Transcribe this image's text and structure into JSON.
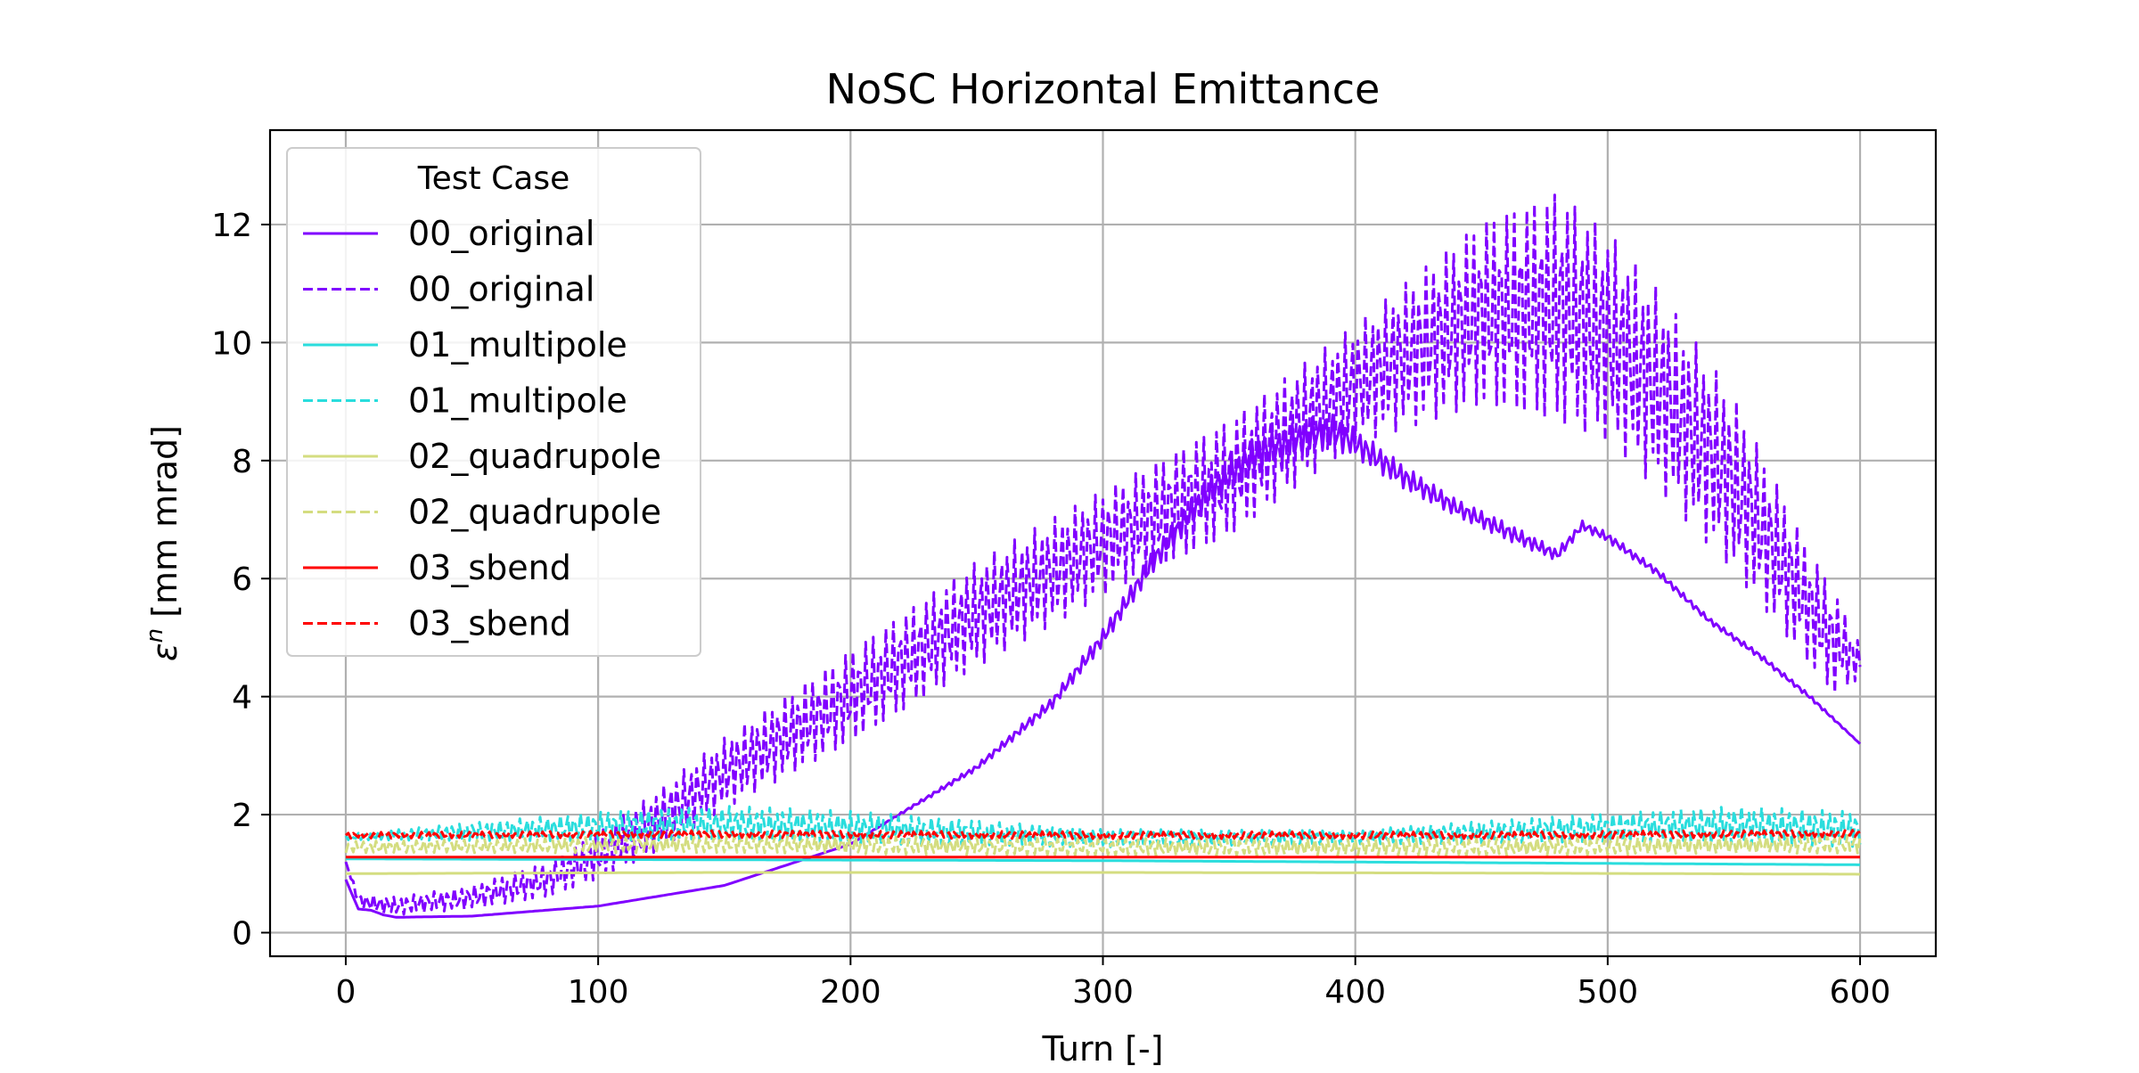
{
  "chart_data": {
    "type": "line",
    "title": "NoSC Horizontal Emittance",
    "xlabel": "Turn [-]",
    "ylabel_symbol": "ε",
    "ylabel_superscript": "n",
    "ylabel_unit": " [mm mrad]",
    "xlim": [
      -30,
      630
    ],
    "ylim": [
      -0.4,
      13.6
    ],
    "xticks": [
      0,
      100,
      200,
      300,
      400,
      500,
      600
    ],
    "yticks": [
      0,
      2,
      4,
      6,
      8,
      10,
      12
    ],
    "grid": true,
    "legend": {
      "title": "Test Case",
      "position": "top-left"
    },
    "series": [
      {
        "name": "00_original",
        "style": "solid",
        "color": "#8000ff",
        "x": [
          0,
          5,
          10,
          15,
          20,
          50,
          100,
          150,
          200,
          250,
          280,
          300,
          320,
          340,
          360,
          380,
          390,
          400,
          420,
          440,
          460,
          480,
          490,
          500,
          520,
          540,
          560,
          580,
          600
        ],
        "y": [
          0.9,
          0.4,
          0.38,
          0.3,
          0.26,
          0.28,
          0.45,
          0.8,
          1.5,
          2.8,
          3.9,
          5.0,
          6.3,
          7.4,
          8.1,
          8.4,
          8.5,
          8.3,
          7.7,
          7.2,
          6.8,
          6.4,
          6.9,
          6.7,
          6.1,
          5.3,
          4.7,
          4.0,
          3.2
        ],
        "amplitude": [
          0,
          0,
          0,
          0,
          0,
          0,
          0,
          0,
          0,
          0.05,
          0.1,
          0.15,
          0.2,
          0.25,
          0.3,
          0.3,
          0.3,
          0.25,
          0.2,
          0.15,
          0.15,
          0.1,
          0.08,
          0.08,
          0.06,
          0.05,
          0.05,
          0.04,
          0
        ]
      },
      {
        "name": "00_original",
        "style": "dashed",
        "color": "#8000ff",
        "x": [
          0,
          5,
          10,
          20,
          50,
          80,
          100,
          120,
          150,
          200,
          250,
          300,
          350,
          400,
          450,
          480,
          500,
          520,
          550,
          580,
          590,
          600
        ],
        "y": [
          1.2,
          0.55,
          0.5,
          0.45,
          0.6,
          0.9,
          1.3,
          1.8,
          2.7,
          4.0,
          5.4,
          6.6,
          7.7,
          9.3,
          10.5,
          10.6,
          10.1,
          9.2,
          7.6,
          5.5,
          4.9,
          4.6
        ],
        "amplitude": [
          0,
          0.1,
          0.15,
          0.15,
          0.2,
          0.3,
          0.4,
          0.5,
          0.6,
          0.8,
          0.9,
          0.9,
          1.0,
          1.0,
          1.6,
          2.0,
          1.8,
          1.7,
          1.5,
          1.0,
          0.9,
          0.3
        ]
      },
      {
        "name": "01_multipole",
        "style": "solid",
        "color": "#2adddd",
        "x": [
          0,
          300,
          600
        ],
        "y": [
          1.25,
          1.22,
          1.15
        ],
        "amplitude": [
          0,
          0,
          0
        ]
      },
      {
        "name": "01_multipole",
        "style": "dashed",
        "color": "#2adddd",
        "x": [
          0,
          100,
          150,
          200,
          300,
          400,
          500,
          550,
          600
        ],
        "y": [
          1.62,
          1.8,
          1.85,
          1.78,
          1.6,
          1.62,
          1.78,
          1.82,
          1.75
        ],
        "amplitude": [
          0.05,
          0.25,
          0.3,
          0.28,
          0.15,
          0.12,
          0.25,
          0.32,
          0.3
        ]
      },
      {
        "name": "02_quadrupole",
        "style": "solid",
        "color": "#d4dd80",
        "x": [
          0,
          150,
          300,
          450,
          600
        ],
        "y": [
          1.0,
          1.02,
          1.02,
          1.01,
          0.99
        ],
        "amplitude": [
          0,
          0,
          0,
          0,
          0
        ]
      },
      {
        "name": "02_quadrupole",
        "style": "dashed",
        "color": "#d4dd80",
        "x": [
          0,
          150,
          300,
          450,
          600
        ],
        "y": [
          1.45,
          1.5,
          1.45,
          1.45,
          1.5
        ],
        "amplitude": [
          0.1,
          0.15,
          0.15,
          0.15,
          0.15
        ]
      },
      {
        "name": "03_sbend",
        "style": "solid",
        "color": "#ff0000",
        "x": [
          0,
          300,
          600
        ],
        "y": [
          1.28,
          1.28,
          1.28
        ],
        "amplitude": [
          0,
          0,
          0
        ]
      },
      {
        "name": "03_sbend",
        "style": "dashed",
        "color": "#ff0000",
        "x": [
          0,
          150,
          300,
          450,
          600
        ],
        "y": [
          1.65,
          1.67,
          1.65,
          1.65,
          1.68
        ],
        "amplitude": [
          0.05,
          0.06,
          0.06,
          0.06,
          0.06
        ]
      }
    ]
  }
}
